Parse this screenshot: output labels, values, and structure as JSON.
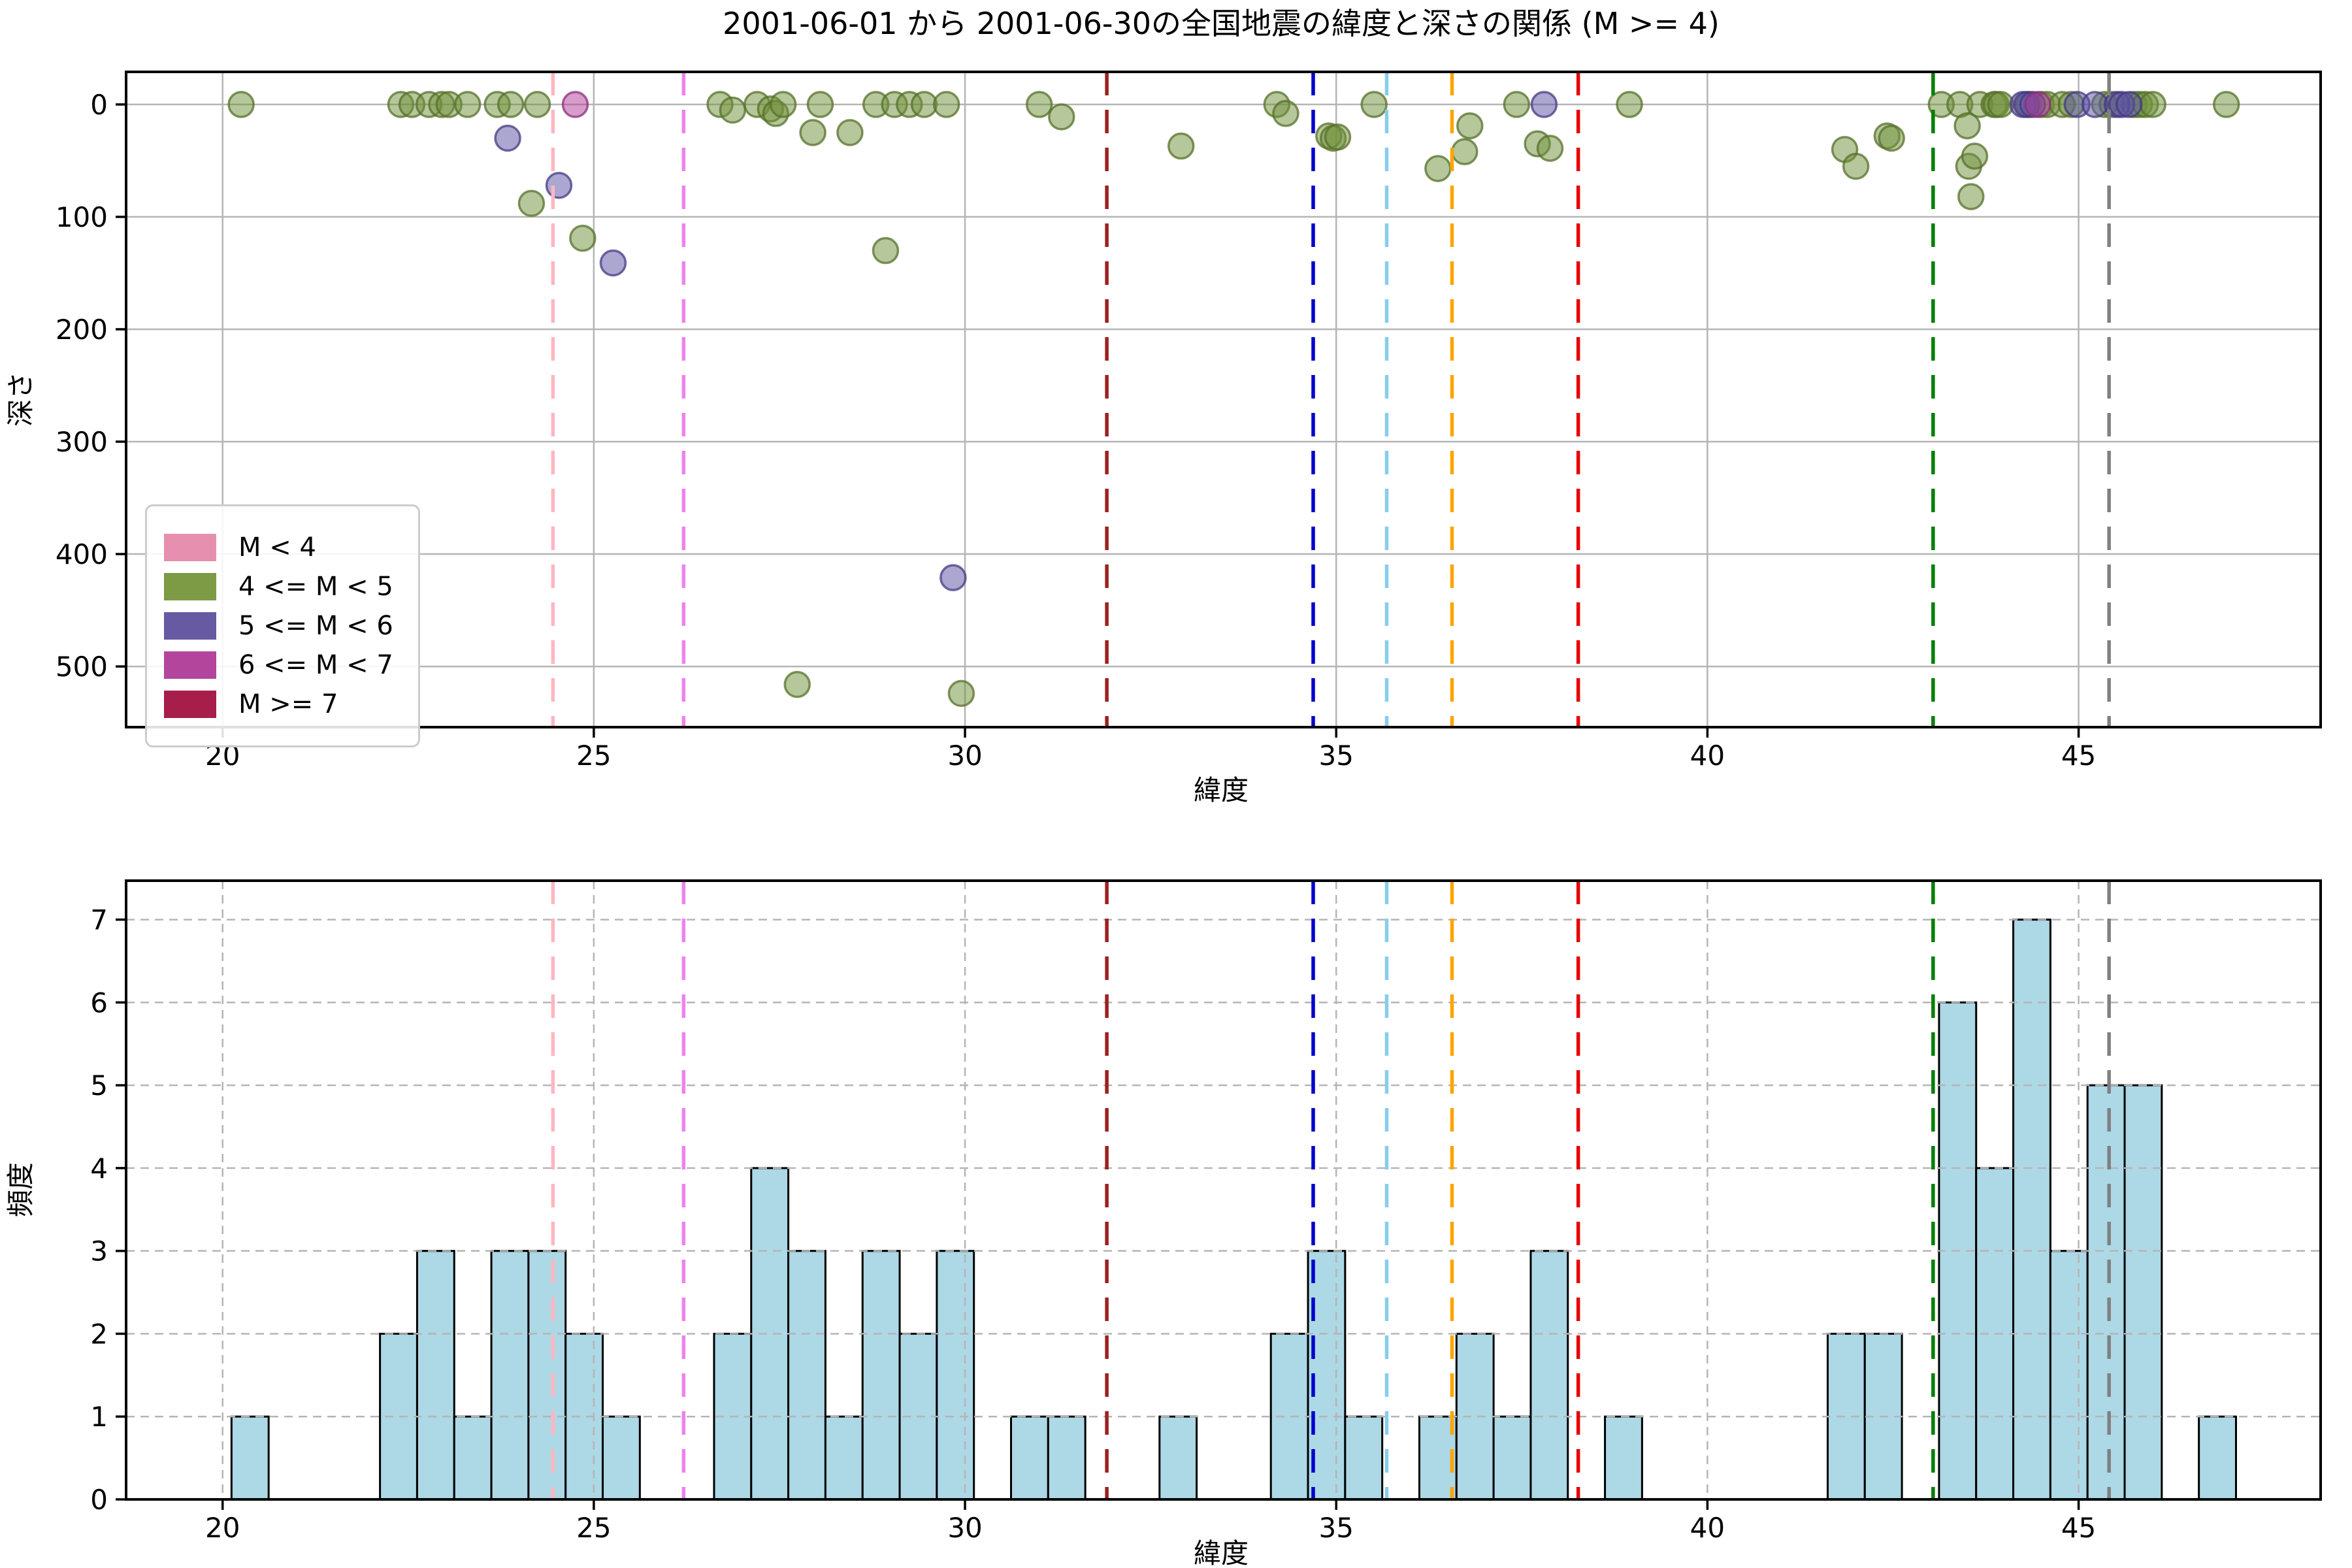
{
  "figure": {
    "title": "2001-06-01 から 2001-06-30の全国地震の緯度と深さの関係 (M >= 4)"
  },
  "legend": {
    "items": [
      {
        "label": "M < 4",
        "color": "#e78fae"
      },
      {
        "label": "4 <= M < 5",
        "color": "#7d9a45"
      },
      {
        "label": "5 <= M < 6",
        "color": "#675aa3"
      },
      {
        "label": "6 <= M < 7",
        "color": "#b3459c"
      },
      {
        "label": "M >= 7",
        "color": "#a81e4a"
      }
    ]
  },
  "chart_data": [
    {
      "type": "scatter",
      "xlabel": "緯度",
      "ylabel": "深さ",
      "xlim": [
        18.7,
        48.26
      ],
      "ylim": [
        -29,
        554
      ],
      "y_inverted": true,
      "grid": "solid",
      "xticks": [
        20,
        25,
        30,
        35,
        40,
        45
      ],
      "yticks": [
        0,
        100,
        200,
        300,
        400,
        500
      ],
      "series": [
        {
          "name": "4 <= M < 5",
          "color": "#6f8f3a",
          "edge": "#55702a",
          "points": [
            [
              20.25,
              0
            ],
            [
              22.4,
              0
            ],
            [
              22.55,
              0
            ],
            [
              22.78,
              0
            ],
            [
              22.95,
              0
            ],
            [
              23.05,
              0
            ],
            [
              23.3,
              0
            ],
            [
              23.7,
              0
            ],
            [
              23.88,
              0
            ],
            [
              24.24,
              0
            ],
            [
              24.16,
              88
            ],
            [
              24.85,
              119
            ],
            [
              26.7,
              0
            ],
            [
              26.87,
              5
            ],
            [
              27.2,
              0
            ],
            [
              27.38,
              4
            ],
            [
              27.45,
              8
            ],
            [
              27.55,
              0
            ],
            [
              27.74,
              516
            ],
            [
              27.95,
              25
            ],
            [
              28.05,
              0
            ],
            [
              28.45,
              25
            ],
            [
              28.8,
              0
            ],
            [
              28.93,
              130
            ],
            [
              29.05,
              0
            ],
            [
              29.25,
              0
            ],
            [
              29.45,
              0
            ],
            [
              29.75,
              0
            ],
            [
              29.95,
              524
            ],
            [
              31.0,
              0
            ],
            [
              31.3,
              11
            ],
            [
              32.91,
              37
            ],
            [
              34.2,
              0
            ],
            [
              34.32,
              8
            ],
            [
              34.9,
              28
            ],
            [
              34.96,
              30
            ],
            [
              35.02,
              29
            ],
            [
              35.51,
              0
            ],
            [
              36.37,
              57
            ],
            [
              36.73,
              42
            ],
            [
              36.8,
              19
            ],
            [
              37.43,
              0
            ],
            [
              37.71,
              35
            ],
            [
              37.88,
              39
            ],
            [
              38.95,
              0
            ],
            [
              41.85,
              40
            ],
            [
              42.0,
              55
            ],
            [
              42.42,
              28
            ],
            [
              42.48,
              30
            ],
            [
              43.15,
              0
            ],
            [
              43.4,
              0
            ],
            [
              43.5,
              19
            ],
            [
              43.52,
              55
            ],
            [
              43.55,
              82
            ],
            [
              43.6,
              46
            ],
            [
              43.67,
              0
            ],
            [
              43.86,
              0
            ],
            [
              43.89,
              0
            ],
            [
              43.95,
              0
            ],
            [
              44.33,
              0
            ],
            [
              44.5,
              0
            ],
            [
              44.58,
              0
            ],
            [
              44.78,
              0
            ],
            [
              44.9,
              0
            ],
            [
              45.35,
              0
            ],
            [
              45.45,
              0
            ],
            [
              45.75,
              0
            ],
            [
              45.82,
              0
            ],
            [
              45.9,
              0
            ],
            [
              46.0,
              0
            ],
            [
              46.99,
              0
            ]
          ]
        },
        {
          "name": "5 <= M < 6",
          "color": "#5a4fa2",
          "edge": "#443a82",
          "points": [
            [
              23.84,
              30
            ],
            [
              24.53,
              72
            ],
            [
              25.26,
              141
            ],
            [
              29.84,
              421
            ],
            [
              37.8,
              0
            ],
            [
              44.25,
              0
            ],
            [
              44.3,
              0
            ],
            [
              44.38,
              0
            ],
            [
              44.98,
              0
            ],
            [
              45.22,
              0
            ],
            [
              45.52,
              0
            ],
            [
              45.58,
              0
            ],
            [
              45.68,
              0
            ]
          ]
        },
        {
          "name": "6 <= M < 7",
          "color": "#b03a9a",
          "edge": "#8c2d7a",
          "points": [
            [
              24.75,
              0
            ],
            [
              44.45,
              0
            ]
          ]
        }
      ],
      "vlines": [
        {
          "lat": 24.45,
          "color": "#ffb6c1"
        },
        {
          "lat": 26.21,
          "color": "#ee82ee"
        },
        {
          "lat": 31.91,
          "color": "#9c2121"
        },
        {
          "lat": 34.69,
          "color": "#0000cd"
        },
        {
          "lat": 35.68,
          "color": "#87ceeb"
        },
        {
          "lat": 36.56,
          "color": "#ffa500"
        },
        {
          "lat": 38.26,
          "color": "#e60000"
        },
        {
          "lat": 43.04,
          "color": "#008000"
        },
        {
          "lat": 45.41,
          "color": "#808080"
        }
      ]
    },
    {
      "type": "histogram",
      "xlabel": "緯度",
      "ylabel": "頻度",
      "xlim": [
        18.7,
        48.26
      ],
      "ylim": [
        0,
        7.47
      ],
      "grid": "dashed",
      "xticks": [
        20,
        25,
        30,
        35,
        40,
        45
      ],
      "yticks": [
        0,
        1,
        2,
        3,
        4,
        5,
        6,
        7
      ],
      "bin_width": 0.5,
      "bar_fill": "#add8e6",
      "bar_edge": "#000000",
      "bars": [
        [
          20.37,
          1
        ],
        [
          22.37,
          2
        ],
        [
          22.87,
          3
        ],
        [
          23.37,
          1
        ],
        [
          23.87,
          3
        ],
        [
          24.37,
          3
        ],
        [
          24.87,
          2
        ],
        [
          25.37,
          1
        ],
        [
          26.87,
          2
        ],
        [
          27.37,
          4
        ],
        [
          27.87,
          3
        ],
        [
          28.37,
          1
        ],
        [
          28.87,
          3
        ],
        [
          29.37,
          2
        ],
        [
          29.87,
          3
        ],
        [
          30.87,
          1
        ],
        [
          31.37,
          1
        ],
        [
          32.87,
          1
        ],
        [
          34.37,
          2
        ],
        [
          34.87,
          3
        ],
        [
          35.37,
          1
        ],
        [
          36.37,
          1
        ],
        [
          36.87,
          2
        ],
        [
          37.37,
          1
        ],
        [
          37.87,
          3
        ],
        [
          38.87,
          1
        ],
        [
          41.87,
          2
        ],
        [
          42.37,
          2
        ],
        [
          43.37,
          6
        ],
        [
          43.87,
          4
        ],
        [
          44.37,
          7
        ],
        [
          44.87,
          3
        ],
        [
          45.37,
          5
        ],
        [
          45.87,
          5
        ],
        [
          46.87,
          1
        ]
      ],
      "vlines": [
        {
          "lat": 24.45,
          "color": "#ffb6c1"
        },
        {
          "lat": 26.21,
          "color": "#ee82ee"
        },
        {
          "lat": 31.91,
          "color": "#9c2121"
        },
        {
          "lat": 34.69,
          "color": "#0000cd"
        },
        {
          "lat": 35.68,
          "color": "#87ceeb"
        },
        {
          "lat": 36.56,
          "color": "#ffa500"
        },
        {
          "lat": 38.26,
          "color": "#e60000"
        },
        {
          "lat": 43.04,
          "color": "#008000"
        },
        {
          "lat": 45.41,
          "color": "#808080"
        }
      ]
    }
  ]
}
